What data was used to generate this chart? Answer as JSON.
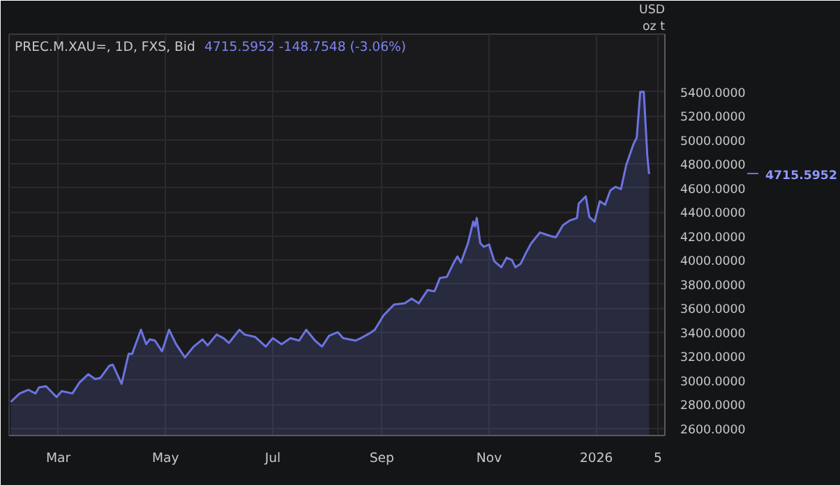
{
  "chart_data": {
    "type": "area",
    "title": "PREC.M.XAU=, 1D, FXS, Bid",
    "subtitle": "4715.5952  -148.7548 (-3.06%)",
    "x": [
      "2025-02-02",
      "2025-02-07",
      "2025-02-12",
      "2025-02-16",
      "2025-02-18",
      "2025-02-22",
      "2025-02-28",
      "2025-03-03",
      "2025-03-09",
      "2025-03-13",
      "2025-03-18",
      "2025-03-22",
      "2025-03-25",
      "2025-03-30",
      "2025-04-01",
      "2025-04-06",
      "2025-04-10",
      "2025-04-12",
      "2025-04-15",
      "2025-04-17",
      "2025-04-20",
      "2025-04-22",
      "2025-04-25",
      "2025-04-29",
      "2025-05-03",
      "2025-05-07",
      "2025-05-12",
      "2025-05-17",
      "2025-05-22",
      "2025-05-25",
      "2025-05-30",
      "2025-06-03",
      "2025-06-06",
      "2025-06-12",
      "2025-06-15",
      "2025-06-21",
      "2025-06-27",
      "2025-07-01",
      "2025-07-06",
      "2025-07-11",
      "2025-07-16",
      "2025-07-20",
      "2025-07-25",
      "2025-07-29",
      "2025-08-02",
      "2025-08-07",
      "2025-08-10",
      "2025-08-17",
      "2025-08-20",
      "2025-08-25",
      "2025-08-28",
      "2025-09-02",
      "2025-09-04",
      "2025-09-08",
      "2025-09-14",
      "2025-09-18",
      "2025-09-22",
      "2025-09-27",
      "2025-10-01",
      "2025-10-04",
      "2025-10-08",
      "2025-10-12",
      "2025-10-14",
      "2025-10-16",
      "2025-10-20",
      "2025-10-23",
      "2025-10-24",
      "2025-10-25",
      "2025-10-27",
      "2025-10-29",
      "2025-11-01",
      "2025-11-04",
      "2025-11-08",
      "2025-11-11",
      "2025-11-14",
      "2025-11-16",
      "2025-11-19",
      "2025-11-22",
      "2025-11-25",
      "2025-11-30",
      "2025-12-06",
      "2025-12-09",
      "2025-12-13",
      "2025-12-17",
      "2025-12-21",
      "2025-12-22",
      "2025-12-26",
      "2025-12-28",
      "2025-12-31",
      "2026-01-03",
      "2026-01-06",
      "2026-01-09",
      "2026-01-12",
      "2026-01-15",
      "2026-01-18",
      "2026-01-22",
      "2026-01-24",
      "2026-01-26",
      "2026-01-28",
      "2026-01-30",
      "2026-01-31"
    ],
    "series": [
      {
        "color": "#6b74e0",
        "values": [
          2820,
          2890,
          2920,
          2890,
          2940,
          2950,
          2860,
          2910,
          2890,
          2980,
          3050,
          3010,
          3020,
          3120,
          3130,
          2970,
          3220,
          3220,
          3340,
          3420,
          3300,
          3340,
          3330,
          3240,
          3420,
          3300,
          3190,
          3280,
          3340,
          3290,
          3380,
          3350,
          3310,
          3420,
          3380,
          3360,
          3280,
          3350,
          3300,
          3350,
          3330,
          3420,
          3330,
          3280,
          3370,
          3400,
          3350,
          3330,
          3350,
          3390,
          3420,
          3540,
          3570,
          3630,
          3640,
          3680,
          3640,
          3750,
          3740,
          3850,
          3860,
          3980,
          4030,
          3980,
          4140,
          4320,
          4280,
          4350,
          4140,
          4110,
          4130,
          3990,
          3940,
          4020,
          4000,
          3940,
          3970,
          4060,
          4140,
          4230,
          4200,
          4190,
          4290,
          4330,
          4350,
          4470,
          4530,
          4360,
          4320,
          4490,
          4460,
          4580,
          4610,
          4590,
          4790,
          4960,
          5020,
          5400,
          5400,
          4870,
          4715.5952
        ]
      }
    ],
    "xlim": [
      "2025-02-01",
      "2026-02-09"
    ],
    "xticks": [
      {
        "value": "2025-03-01",
        "label": "Mar"
      },
      {
        "value": "2025-05-01",
        "label": "May"
      },
      {
        "value": "2025-07-01",
        "label": "Jul"
      },
      {
        "value": "2025-09-01",
        "label": "Sep"
      },
      {
        "value": "2025-11-01",
        "label": "Nov"
      },
      {
        "value": "2026-01-01",
        "label": "2026"
      },
      {
        "value": "2026-02-05",
        "label": "5"
      }
    ],
    "ylim": [
      2540,
      5880
    ],
    "yticks": [
      {
        "value": 2600,
        "label": "2600.0000"
      },
      {
        "value": 2800,
        "label": "2800.0000"
      },
      {
        "value": 3000,
        "label": "3000.0000"
      },
      {
        "value": 3200,
        "label": "3200.0000"
      },
      {
        "value": 3400,
        "label": "3400.0000"
      },
      {
        "value": 3600,
        "label": "3600.0000"
      },
      {
        "value": 3800,
        "label": "3800.0000"
      },
      {
        "value": 4000,
        "label": "4000.0000"
      },
      {
        "value": 4200,
        "label": "4200.0000"
      },
      {
        "value": 4400,
        "label": "4400.0000"
      },
      {
        "value": 4600,
        "label": "4600.0000"
      },
      {
        "value": 4800,
        "label": "4800.0000"
      },
      {
        "value": 5000,
        "label": "5000.0000"
      },
      {
        "value": 5200,
        "label": "5200.0000"
      },
      {
        "value": 5400,
        "label": "5400.0000"
      }
    ],
    "annotations": [
      "USD",
      "oz t",
      "4715.5952"
    ],
    "grid": true
  }
}
